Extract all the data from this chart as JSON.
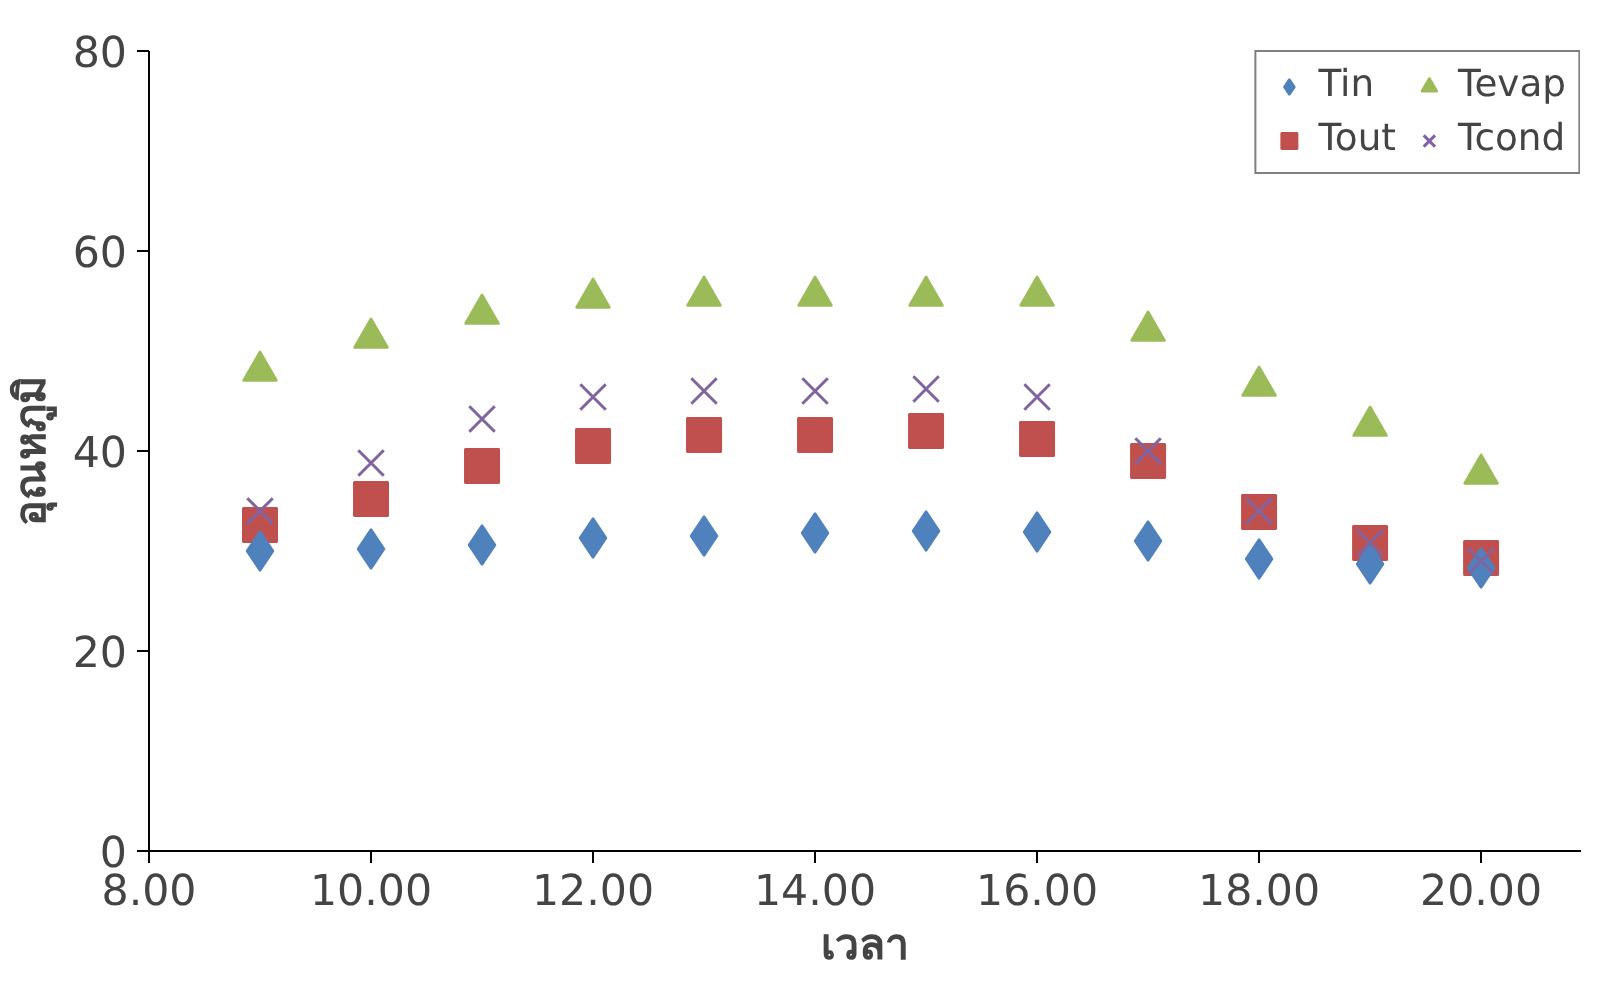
{
  "chart_data": {
    "type": "scatter",
    "xlabel": "เวลา",
    "ylabel": "อุณหภูมิ",
    "x": [
      9,
      10,
      11,
      12,
      13,
      14,
      15,
      16,
      17,
      18,
      19,
      20
    ],
    "xlim": [
      8,
      20.9
    ],
    "xticks": [
      {
        "value": 8,
        "label": "8.00"
      },
      {
        "value": 10,
        "label": "10.00"
      },
      {
        "value": 12,
        "label": "12.00"
      },
      {
        "value": 14,
        "label": "14.00"
      },
      {
        "value": 16,
        "label": "16.00"
      },
      {
        "value": 18,
        "label": "18.00"
      },
      {
        "value": 20,
        "label": "20.00"
      }
    ],
    "ylim": [
      0,
      80
    ],
    "yticks": [
      0,
      20,
      40,
      60,
      80
    ],
    "grid": false,
    "legend": "top right",
    "series": [
      {
        "name": "Tin",
        "color": "#4f81bd",
        "marker": "diamond",
        "values": [
          30,
          30.2,
          30.6,
          31.3,
          31.5,
          31.8,
          32,
          31.9,
          31,
          29.2,
          28.7,
          28.3
        ]
      },
      {
        "name": "Tout",
        "color": "#c0504d",
        "marker": "square",
        "values": [
          32.6,
          35.2,
          38.5,
          40.5,
          41.6,
          41.6,
          42,
          41.2,
          39,
          33.9,
          30.8,
          29.3
        ]
      },
      {
        "name": "Tevap",
        "color": "#9bbb59",
        "marker": "triangle",
        "values": [
          48,
          51.3,
          53.7,
          55.3,
          55.5,
          55.5,
          55.5,
          55.5,
          52,
          46.5,
          42.5,
          37.7
        ]
      },
      {
        "name": "Tcond",
        "color": "#8064a2",
        "marker": "cross",
        "values": [
          34,
          38.8,
          43.2,
          45.4,
          46,
          46,
          46.2,
          45.4,
          40,
          34,
          30.8,
          29
        ]
      }
    ]
  }
}
